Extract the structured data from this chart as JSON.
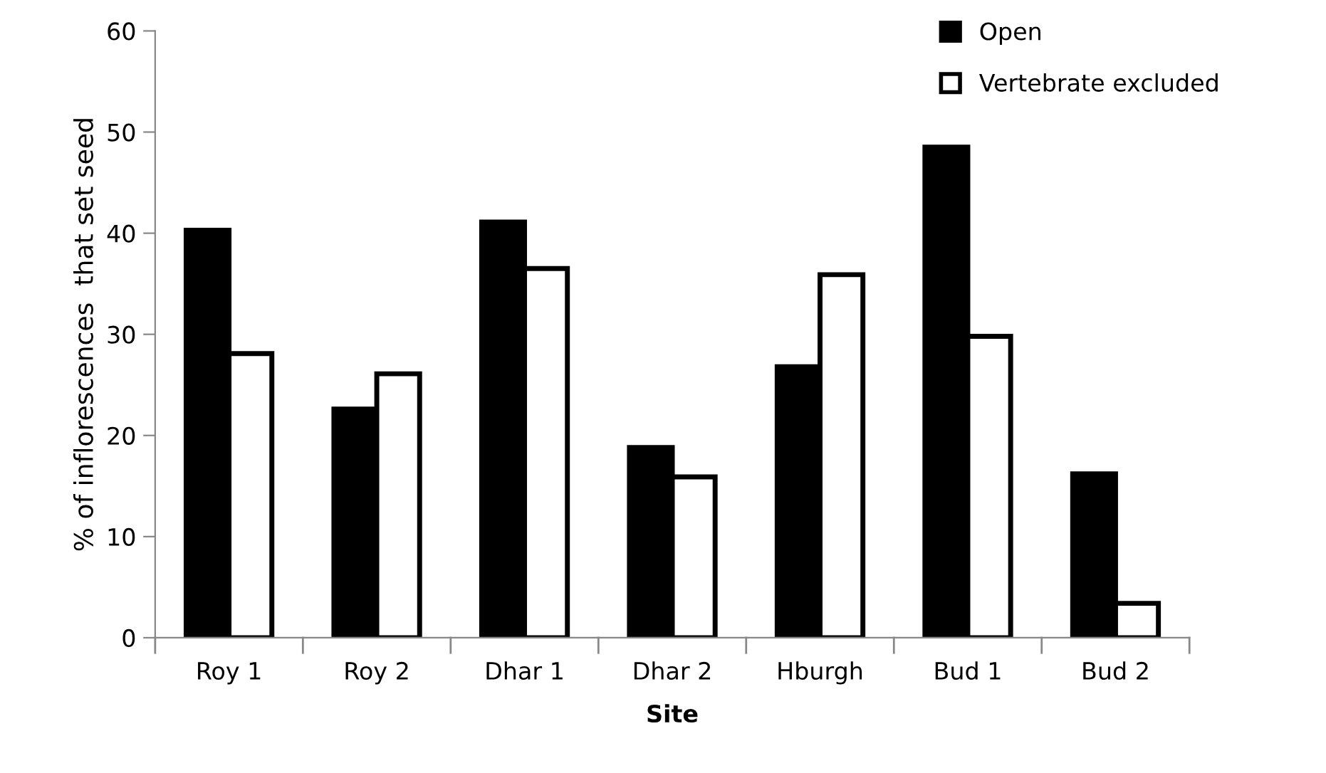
{
  "chart_data": {
    "type": "bar",
    "xlabel": "Site",
    "ylabel": "% of inflorescences  that set seed",
    "categories": [
      "Roy 1",
      "Roy 2",
      "Dhar 1",
      "Dhar 2",
      "Hburgh",
      "Bud 1",
      "Bud 2"
    ],
    "series": [
      {
        "name": "Open",
        "color": "#000000",
        "values": [
          40.3,
          22.6,
          41.1,
          18.8,
          26.8,
          48.5,
          16.2
        ]
      },
      {
        "name": "Vertebrate excluded",
        "color": "#ffffff",
        "values": [
          28.1,
          26.1,
          36.5,
          15.9,
          35.9,
          29.8,
          3.4
        ]
      }
    ],
    "ylim": [
      0,
      60
    ],
    "yticks": [
      0,
      10,
      20,
      30,
      40,
      50,
      60
    ],
    "grid": false,
    "legend": "top right"
  }
}
